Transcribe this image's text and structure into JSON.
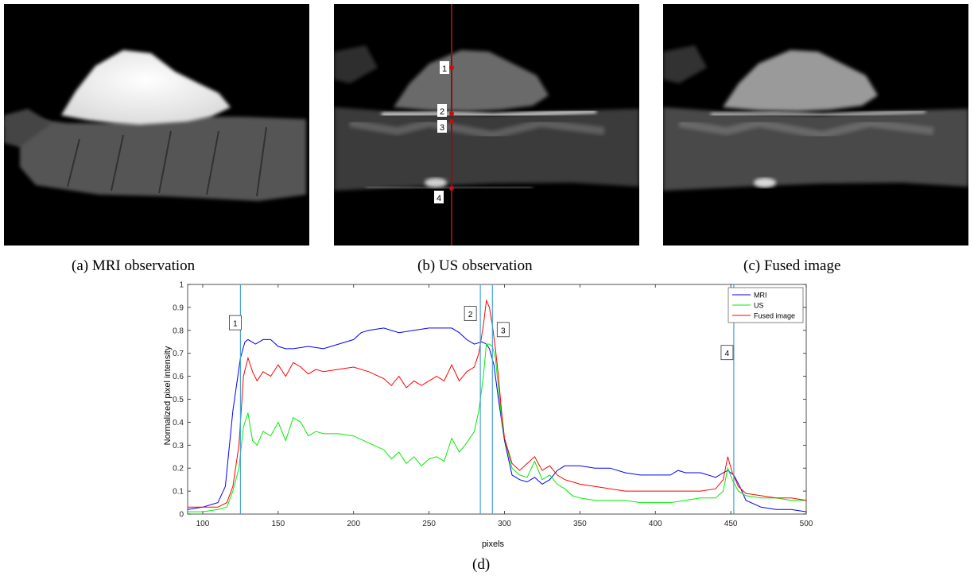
{
  "captions": {
    "a": "(a) MRI observation",
    "b": "(b) US observation",
    "c": "(c) Fused image",
    "d": "(d)"
  },
  "us_markers": [
    "1",
    "2",
    "3",
    "4"
  ],
  "colors": {
    "mri": "#0000ff",
    "us": "#00ee00",
    "fused": "#ff0000",
    "vline": "#4aa3d8",
    "profile_line": "#8b1010"
  },
  "chart_data": {
    "type": "line",
    "xlabel": "pixels",
    "ylabel": "Normalized pixel intensity",
    "xlim": [
      90,
      500
    ],
    "ylim": [
      0,
      1
    ],
    "xticks": [
      100,
      150,
      200,
      250,
      300,
      350,
      400,
      450,
      500
    ],
    "yticks": [
      0,
      0.1,
      0.2,
      0.3,
      0.4,
      0.5,
      0.6,
      0.7,
      0.8,
      0.9,
      1
    ],
    "legend_position": "top-right",
    "grid": false,
    "vlines": [
      {
        "label": "1",
        "x": 125
      },
      {
        "label": "2",
        "x": 284
      },
      {
        "label": "3",
        "x": 292
      },
      {
        "label": "4",
        "x": 452
      }
    ],
    "series": [
      {
        "name": "MRI",
        "x": [
          90,
          100,
          110,
          115,
          120,
          125,
          128,
          130,
          135,
          140,
          145,
          150,
          155,
          160,
          170,
          180,
          190,
          200,
          205,
          210,
          220,
          230,
          240,
          250,
          260,
          265,
          270,
          275,
          280,
          285,
          288,
          290,
          293,
          296,
          300,
          305,
          310,
          315,
          320,
          325,
          330,
          335,
          340,
          350,
          360,
          370,
          380,
          390,
          400,
          410,
          415,
          420,
          430,
          440,
          445,
          448,
          452,
          456,
          460,
          470,
          480,
          490,
          500
        ],
        "y": [
          0.02,
          0.03,
          0.05,
          0.12,
          0.45,
          0.68,
          0.75,
          0.76,
          0.74,
          0.76,
          0.76,
          0.73,
          0.72,
          0.72,
          0.73,
          0.72,
          0.74,
          0.76,
          0.79,
          0.8,
          0.81,
          0.79,
          0.8,
          0.81,
          0.81,
          0.81,
          0.79,
          0.76,
          0.74,
          0.75,
          0.74,
          0.72,
          0.65,
          0.5,
          0.32,
          0.17,
          0.15,
          0.14,
          0.16,
          0.13,
          0.15,
          0.19,
          0.21,
          0.21,
          0.2,
          0.2,
          0.18,
          0.17,
          0.17,
          0.17,
          0.19,
          0.18,
          0.18,
          0.16,
          0.18,
          0.19,
          0.17,
          0.12,
          0.06,
          0.03,
          0.02,
          0.02,
          0.01
        ]
      },
      {
        "name": "US",
        "x": [
          90,
          100,
          110,
          116,
          120,
          124,
          127,
          130,
          133,
          136,
          140,
          145,
          150,
          155,
          160,
          165,
          170,
          175,
          180,
          190,
          200,
          210,
          220,
          225,
          230,
          235,
          240,
          245,
          250,
          255,
          260,
          265,
          270,
          275,
          280,
          283,
          286,
          288,
          290,
          292,
          294,
          296,
          298,
          300,
          305,
          310,
          315,
          320,
          325,
          330,
          335,
          340,
          345,
          350,
          360,
          370,
          380,
          390,
          400,
          410,
          420,
          430,
          440,
          445,
          448,
          451,
          455,
          460,
          470,
          480,
          490,
          500
        ],
        "y": [
          0.01,
          0.01,
          0.02,
          0.03,
          0.1,
          0.2,
          0.38,
          0.44,
          0.32,
          0.3,
          0.36,
          0.34,
          0.4,
          0.32,
          0.42,
          0.4,
          0.34,
          0.36,
          0.35,
          0.35,
          0.34,
          0.31,
          0.28,
          0.24,
          0.27,
          0.22,
          0.25,
          0.21,
          0.24,
          0.25,
          0.23,
          0.33,
          0.27,
          0.31,
          0.36,
          0.45,
          0.6,
          0.74,
          0.74,
          0.73,
          0.68,
          0.55,
          0.42,
          0.33,
          0.2,
          0.17,
          0.16,
          0.23,
          0.15,
          0.17,
          0.13,
          0.11,
          0.08,
          0.07,
          0.06,
          0.06,
          0.06,
          0.05,
          0.05,
          0.05,
          0.06,
          0.07,
          0.07,
          0.1,
          0.2,
          0.15,
          0.1,
          0.08,
          0.07,
          0.07,
          0.06,
          0.06
        ]
      },
      {
        "name": "Fused image",
        "x": [
          90,
          100,
          110,
          116,
          120,
          124,
          127,
          130,
          133,
          136,
          140,
          145,
          150,
          155,
          160,
          165,
          170,
          175,
          180,
          190,
          200,
          210,
          220,
          225,
          230,
          235,
          240,
          245,
          250,
          255,
          260,
          265,
          270,
          275,
          280,
          283,
          286,
          288,
          290,
          292,
          294,
          296,
          298,
          300,
          305,
          310,
          315,
          320,
          325,
          330,
          335,
          340,
          350,
          360,
          370,
          380,
          390,
          400,
          410,
          420,
          430,
          440,
          445,
          448,
          451,
          455,
          460,
          470,
          480,
          490,
          500
        ],
        "y": [
          0.03,
          0.03,
          0.03,
          0.05,
          0.12,
          0.3,
          0.6,
          0.68,
          0.62,
          0.58,
          0.62,
          0.6,
          0.65,
          0.6,
          0.66,
          0.64,
          0.61,
          0.63,
          0.62,
          0.63,
          0.64,
          0.62,
          0.59,
          0.56,
          0.6,
          0.55,
          0.58,
          0.56,
          0.58,
          0.6,
          0.58,
          0.65,
          0.58,
          0.62,
          0.64,
          0.7,
          0.82,
          0.93,
          0.9,
          0.82,
          0.72,
          0.6,
          0.45,
          0.33,
          0.22,
          0.19,
          0.22,
          0.25,
          0.19,
          0.21,
          0.17,
          0.15,
          0.13,
          0.12,
          0.11,
          0.1,
          0.1,
          0.1,
          0.1,
          0.1,
          0.1,
          0.11,
          0.15,
          0.25,
          0.18,
          0.12,
          0.09,
          0.08,
          0.07,
          0.07,
          0.06
        ]
      }
    ]
  }
}
